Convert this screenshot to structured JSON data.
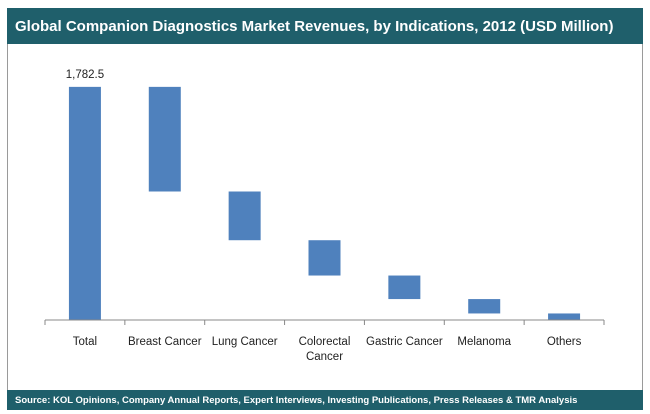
{
  "title": "Global Companion Diagnostics Market Revenues, by Indications, 2012 (USD Million)",
  "source": "Source: KOL Opinions, Company Annual Reports, Expert Interviews, Investing Publications, Press Releases & TMR Analysis",
  "colors": {
    "bar": "#4f81bd",
    "header": "#1f5f6b",
    "axis": "#888888"
  },
  "chart_data": {
    "type": "bar",
    "subtype": "waterfall",
    "categories": [
      [
        "Total"
      ],
      [
        "Breast Cancer"
      ],
      [
        "Lung Cancer"
      ],
      [
        "Colorectal",
        "Cancer"
      ],
      [
        "Gastric Cancer"
      ],
      [
        "Melanoma"
      ],
      [
        "Others"
      ]
    ],
    "segments": [
      {
        "start": 0,
        "end": 1782.5
      },
      {
        "start": 982.5,
        "end": 1782.5
      },
      {
        "start": 610,
        "end": 982.5
      },
      {
        "start": 340,
        "end": 610
      },
      {
        "start": 160,
        "end": 340
      },
      {
        "start": 50,
        "end": 160
      },
      {
        "start": 0,
        "end": 50
      }
    ],
    "data_labels": [
      "1,782.5",
      "",
      "",
      "",
      "",
      "",
      ""
    ],
    "ylim": [
      0,
      1900
    ],
    "grid": false,
    "legend": "none"
  }
}
